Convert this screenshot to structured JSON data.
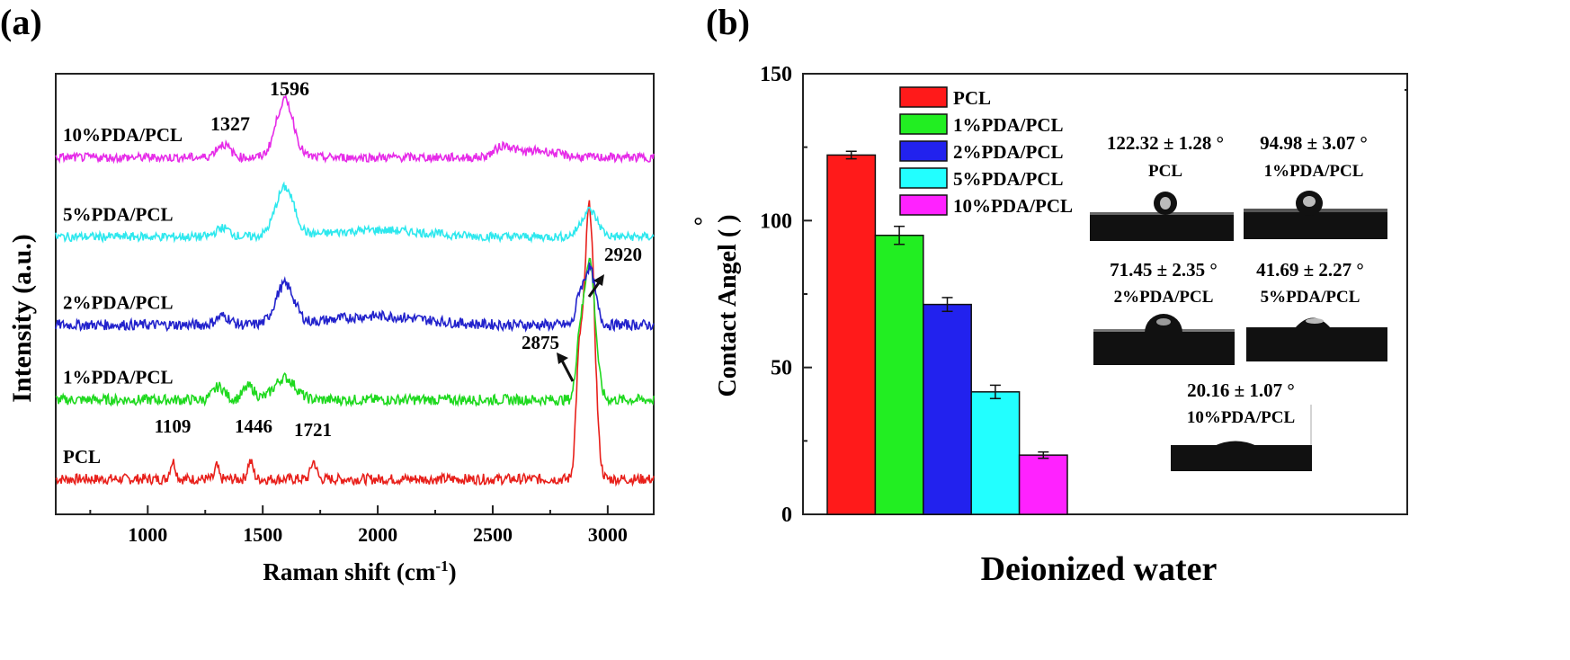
{
  "panels": {
    "a": {
      "label": "(a)",
      "chart_data": {
        "type": "line",
        "xlabel": "Raman shift (cm",
        "xlabel_sup": "-1",
        "xlabel_end": ")",
        "ylabel": "Intensity (a.u.)",
        "xlim": [
          600,
          3200
        ],
        "xticks": [
          1000,
          1500,
          2000,
          2500,
          3000
        ],
        "series": [
          {
            "name": "PCL",
            "color": "#e8201b",
            "baseline": 0.08,
            "noise": 0.012,
            "peaks": [
              [
                1109,
                0.04,
                12
              ],
              [
                1300,
                0.03,
                8
              ],
              [
                1446,
                0.04,
                12
              ],
              [
                1721,
                0.04,
                12
              ],
              [
                2875,
                0.23,
                14
              ],
              [
                2920,
                0.62,
                22
              ]
            ]
          },
          {
            "name": "1%PDA/PCL",
            "color": "#1fd91f",
            "baseline": 0.26,
            "noise": 0.012,
            "peaks": [
              [
                1310,
                0.03,
                25
              ],
              [
                1440,
                0.03,
                25
              ],
              [
                1596,
                0.05,
                45
              ],
              [
                2875,
                0.1,
                14
              ],
              [
                2920,
                0.32,
                25
              ]
            ]
          },
          {
            "name": "2%PDA/PCL",
            "color": "#2222cc",
            "baseline": 0.43,
            "noise": 0.012,
            "peaks": [
              [
                1327,
                0.02,
                30
              ],
              [
                1596,
                0.09,
                40
              ],
              [
                2000,
                0.02,
                200
              ],
              [
                2875,
                0.05,
                14
              ],
              [
                2920,
                0.13,
                25
              ]
            ]
          },
          {
            "name": "5%PDA/PCL",
            "color": "#2ee8ee",
            "baseline": 0.63,
            "noise": 0.01,
            "peaks": [
              [
                1327,
                0.02,
                30
              ],
              [
                1596,
                0.11,
                40
              ],
              [
                2000,
                0.015,
                200
              ],
              [
                2920,
                0.06,
                35
              ]
            ]
          },
          {
            "name": "10%PDA/PCL",
            "color": "#e62be8",
            "baseline": 0.81,
            "noise": 0.01,
            "peaks": [
              [
                1327,
                0.03,
                30
              ],
              [
                1596,
                0.13,
                38
              ],
              [
                2550,
                0.025,
                40
              ],
              [
                2700,
                0.015,
                80
              ]
            ]
          }
        ],
        "annotations": [
          {
            "text": "1596",
            "color": "#e8201b"
          },
          {
            "text": "1327",
            "color": "#e8201b"
          },
          {
            "text": "1109",
            "color": "#111111"
          },
          {
            "text": "1446",
            "color": "#111111"
          },
          {
            "text": "1721",
            "color": "#111111"
          },
          {
            "text": "2875",
            "color": "#111111"
          },
          {
            "text": "2920",
            "color": "#111111"
          }
        ]
      }
    },
    "b": {
      "label": "(b)",
      "chart_data": {
        "type": "bar",
        "xlabel": "Deionized water",
        "ylabel": "Contact Angel ( )",
        "ylabel_degree": "°",
        "ylim": [
          0,
          150
        ],
        "yticks": [
          0,
          50,
          100,
          150
        ],
        "categories": [
          "PCL",
          "1%PDA/PCL",
          "2%PDA/PCL",
          "5%PDA/PCL",
          "10%PDA/PCL"
        ],
        "values": [
          122.32,
          94.98,
          71.45,
          41.69,
          20.16
        ],
        "errors": [
          1.28,
          3.07,
          2.35,
          2.27,
          1.07
        ],
        "colors": [
          "#ff1a1a",
          "#22ee22",
          "#2222ee",
          "#22ffff",
          "#ff22ff"
        ],
        "legend": "top-left"
      },
      "insets": [
        {
          "value": "122.32 ± 1.28 °",
          "name": "PCL"
        },
        {
          "value": "94.98 ± 3.07 °",
          "name": "1%PDA/PCL"
        },
        {
          "value": "71.45 ± 2.35 °",
          "name": "2%PDA/PCL"
        },
        {
          "value": "41.69 ± 2.27 °",
          "name": "5%PDA/PCL"
        },
        {
          "value": "20.16 ± 1.07 °",
          "name": "10%PDA/PCL"
        }
      ]
    }
  }
}
